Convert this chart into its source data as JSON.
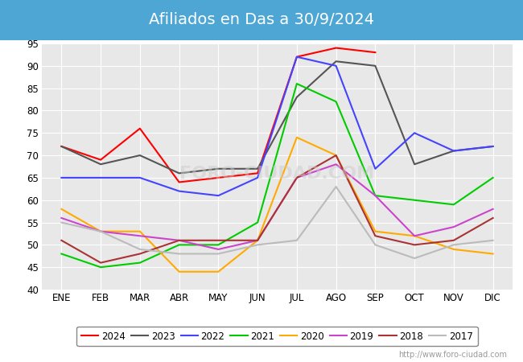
{
  "title": "Afiliados en Das a 30/9/2024",
  "ylim": [
    40,
    95
  ],
  "yticks": [
    40,
    45,
    50,
    55,
    60,
    65,
    70,
    75,
    80,
    85,
    90,
    95
  ],
  "months": [
    "ENE",
    "FEB",
    "MAR",
    "ABR",
    "MAY",
    "JUN",
    "JUL",
    "AGO",
    "SEP",
    "OCT",
    "NOV",
    "DIC"
  ],
  "series": {
    "2024": {
      "color": "#ff0000",
      "data": [
        72,
        69,
        76,
        64,
        65,
        66,
        92,
        94,
        93,
        null,
        null,
        null
      ]
    },
    "2023": {
      "color": "#555555",
      "data": [
        72,
        68,
        70,
        66,
        67,
        67,
        83,
        91,
        90,
        68,
        71,
        72
      ]
    },
    "2022": {
      "color": "#4444ff",
      "data": [
        65,
        65,
        65,
        62,
        61,
        65,
        92,
        90,
        67,
        75,
        71,
        72
      ]
    },
    "2021": {
      "color": "#00cc00",
      "data": [
        48,
        45,
        46,
        50,
        50,
        55,
        86,
        82,
        61,
        60,
        59,
        65
      ]
    },
    "2020": {
      "color": "#ffaa00",
      "data": [
        58,
        53,
        53,
        44,
        44,
        51,
        74,
        70,
        53,
        52,
        49,
        48
      ]
    },
    "2019": {
      "color": "#cc44cc",
      "data": [
        56,
        53,
        52,
        51,
        49,
        51,
        65,
        68,
        61,
        52,
        54,
        58
      ]
    },
    "2018": {
      "color": "#aa3333",
      "data": [
        51,
        46,
        48,
        51,
        51,
        51,
        65,
        70,
        52,
        50,
        51,
        56
      ]
    },
    "2017": {
      "color": "#bbbbbb",
      "data": [
        55,
        53,
        49,
        48,
        48,
        50,
        51,
        63,
        50,
        47,
        50,
        51
      ]
    }
  },
  "watermark": "http://www.foro-ciudad.com",
  "plot_bg_color": "#e8e8e8",
  "title_bg_color": "#4da6d4",
  "title_text_color": "white",
  "title_fontsize": 14,
  "tick_fontsize": 8.5
}
